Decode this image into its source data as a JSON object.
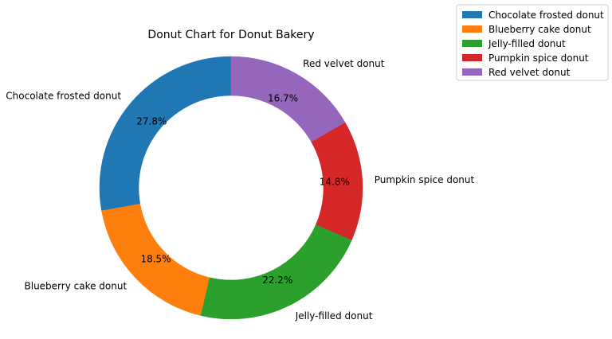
{
  "chart_data": {
    "type": "pie",
    "variant": "donut",
    "title": "Donut Chart for Donut Bakery",
    "start_angle_deg": 90,
    "direction": "counterclockwise",
    "categories": [
      "Chocolate frosted donut",
      "Blueberry cake donut",
      "Jelly-filled donut",
      "Pumpkin spice donut",
      "Red velvet donut"
    ],
    "values": [
      27.8,
      18.5,
      22.2,
      14.8,
      16.7
    ],
    "percent_labels": [
      "27.8%",
      "18.5%",
      "22.2%",
      "14.8%",
      "16.7%"
    ],
    "colors": [
      "#1f77b4",
      "#ff7f0e",
      "#2ca02c",
      "#d62728",
      "#9467bd"
    ],
    "legend": {
      "placement": "top-right",
      "entries": [
        "Chocolate frosted donut",
        "Blueberry cake donut",
        "Jelly-filled donut",
        "Pumpkin spice donut",
        "Red velvet donut"
      ]
    }
  }
}
